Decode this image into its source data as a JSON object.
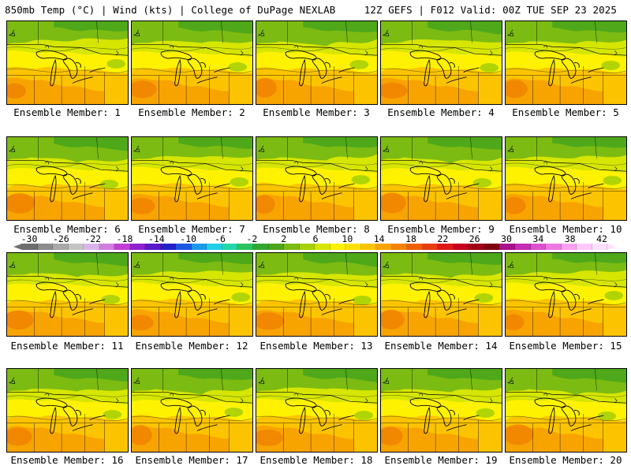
{
  "header": {
    "left_title": "850mb Temp (°C) | Wind (kts) | College of DuPage NEXLAB",
    "right_title": "12Z GEFS | F012 Valid: 00Z TUE SEP 23 2025"
  },
  "panels": [
    {
      "label": "Ensemble Member: 1"
    },
    {
      "label": "Ensemble Member: 2"
    },
    {
      "label": "Ensemble Member: 3"
    },
    {
      "label": "Ensemble Member: 4"
    },
    {
      "label": "Ensemble Member: 5"
    },
    {
      "label": "Ensemble Member: 6"
    },
    {
      "label": "Ensemble Member: 7"
    },
    {
      "label": "Ensemble Member: 8"
    },
    {
      "label": "Ensemble Member: 9"
    },
    {
      "label": "Ensemble Member: 10"
    },
    {
      "label": "Ensemble Member: 11"
    },
    {
      "label": "Ensemble Member: 12"
    },
    {
      "label": "Ensemble Member: 13"
    },
    {
      "label": "Ensemble Member: 14"
    },
    {
      "label": "Ensemble Member: 15"
    },
    {
      "label": "Ensemble Member: 16"
    },
    {
      "label": "Ensemble Member: 17"
    },
    {
      "label": "Ensemble Member: 18"
    },
    {
      "label": "Ensemble Member: 19"
    },
    {
      "label": "Ensemble Member: 20"
    }
  ],
  "colorbar": {
    "tick_labels": [
      "-30",
      "-26",
      "-22",
      "-18",
      "-14",
      "-10",
      "-6",
      "-2",
      "2",
      "6",
      "10",
      "14",
      "18",
      "22",
      "26",
      "30",
      "34",
      "38",
      "42"
    ],
    "colors": [
      "#6e6e6e",
      "#8c8c8c",
      "#a8a8a8",
      "#c4c4c4",
      "#dcb4ec",
      "#d27ee0",
      "#c23ed6",
      "#8e20d0",
      "#5a18c8",
      "#2420c8",
      "#1a58e4",
      "#1c9ae8",
      "#20d0e6",
      "#22d8a8",
      "#28c460",
      "#30a830",
      "#4fa51a",
      "#7cbb12",
      "#a8d008",
      "#d6e600",
      "#fff200",
      "#fde000",
      "#fcc400",
      "#f8a400",
      "#f48400",
      "#f06000",
      "#e83c10",
      "#e01818",
      "#c80020",
      "#a00018",
      "#800010",
      "#a8108c",
      "#c62cb4",
      "#dc50d0",
      "#ee78e2",
      "#ffa0f0",
      "#ffc8fa",
      "#ffe0ff"
    ]
  },
  "map_colors": {
    "green_dark": "#4ea81a",
    "green_mid": "#7cbb12",
    "green_light": "#a8d008",
    "lime": "#d6e600",
    "yellow": "#fff200",
    "gold": "#fcc400",
    "orange": "#f8a400",
    "orange_dark": "#f08400"
  }
}
